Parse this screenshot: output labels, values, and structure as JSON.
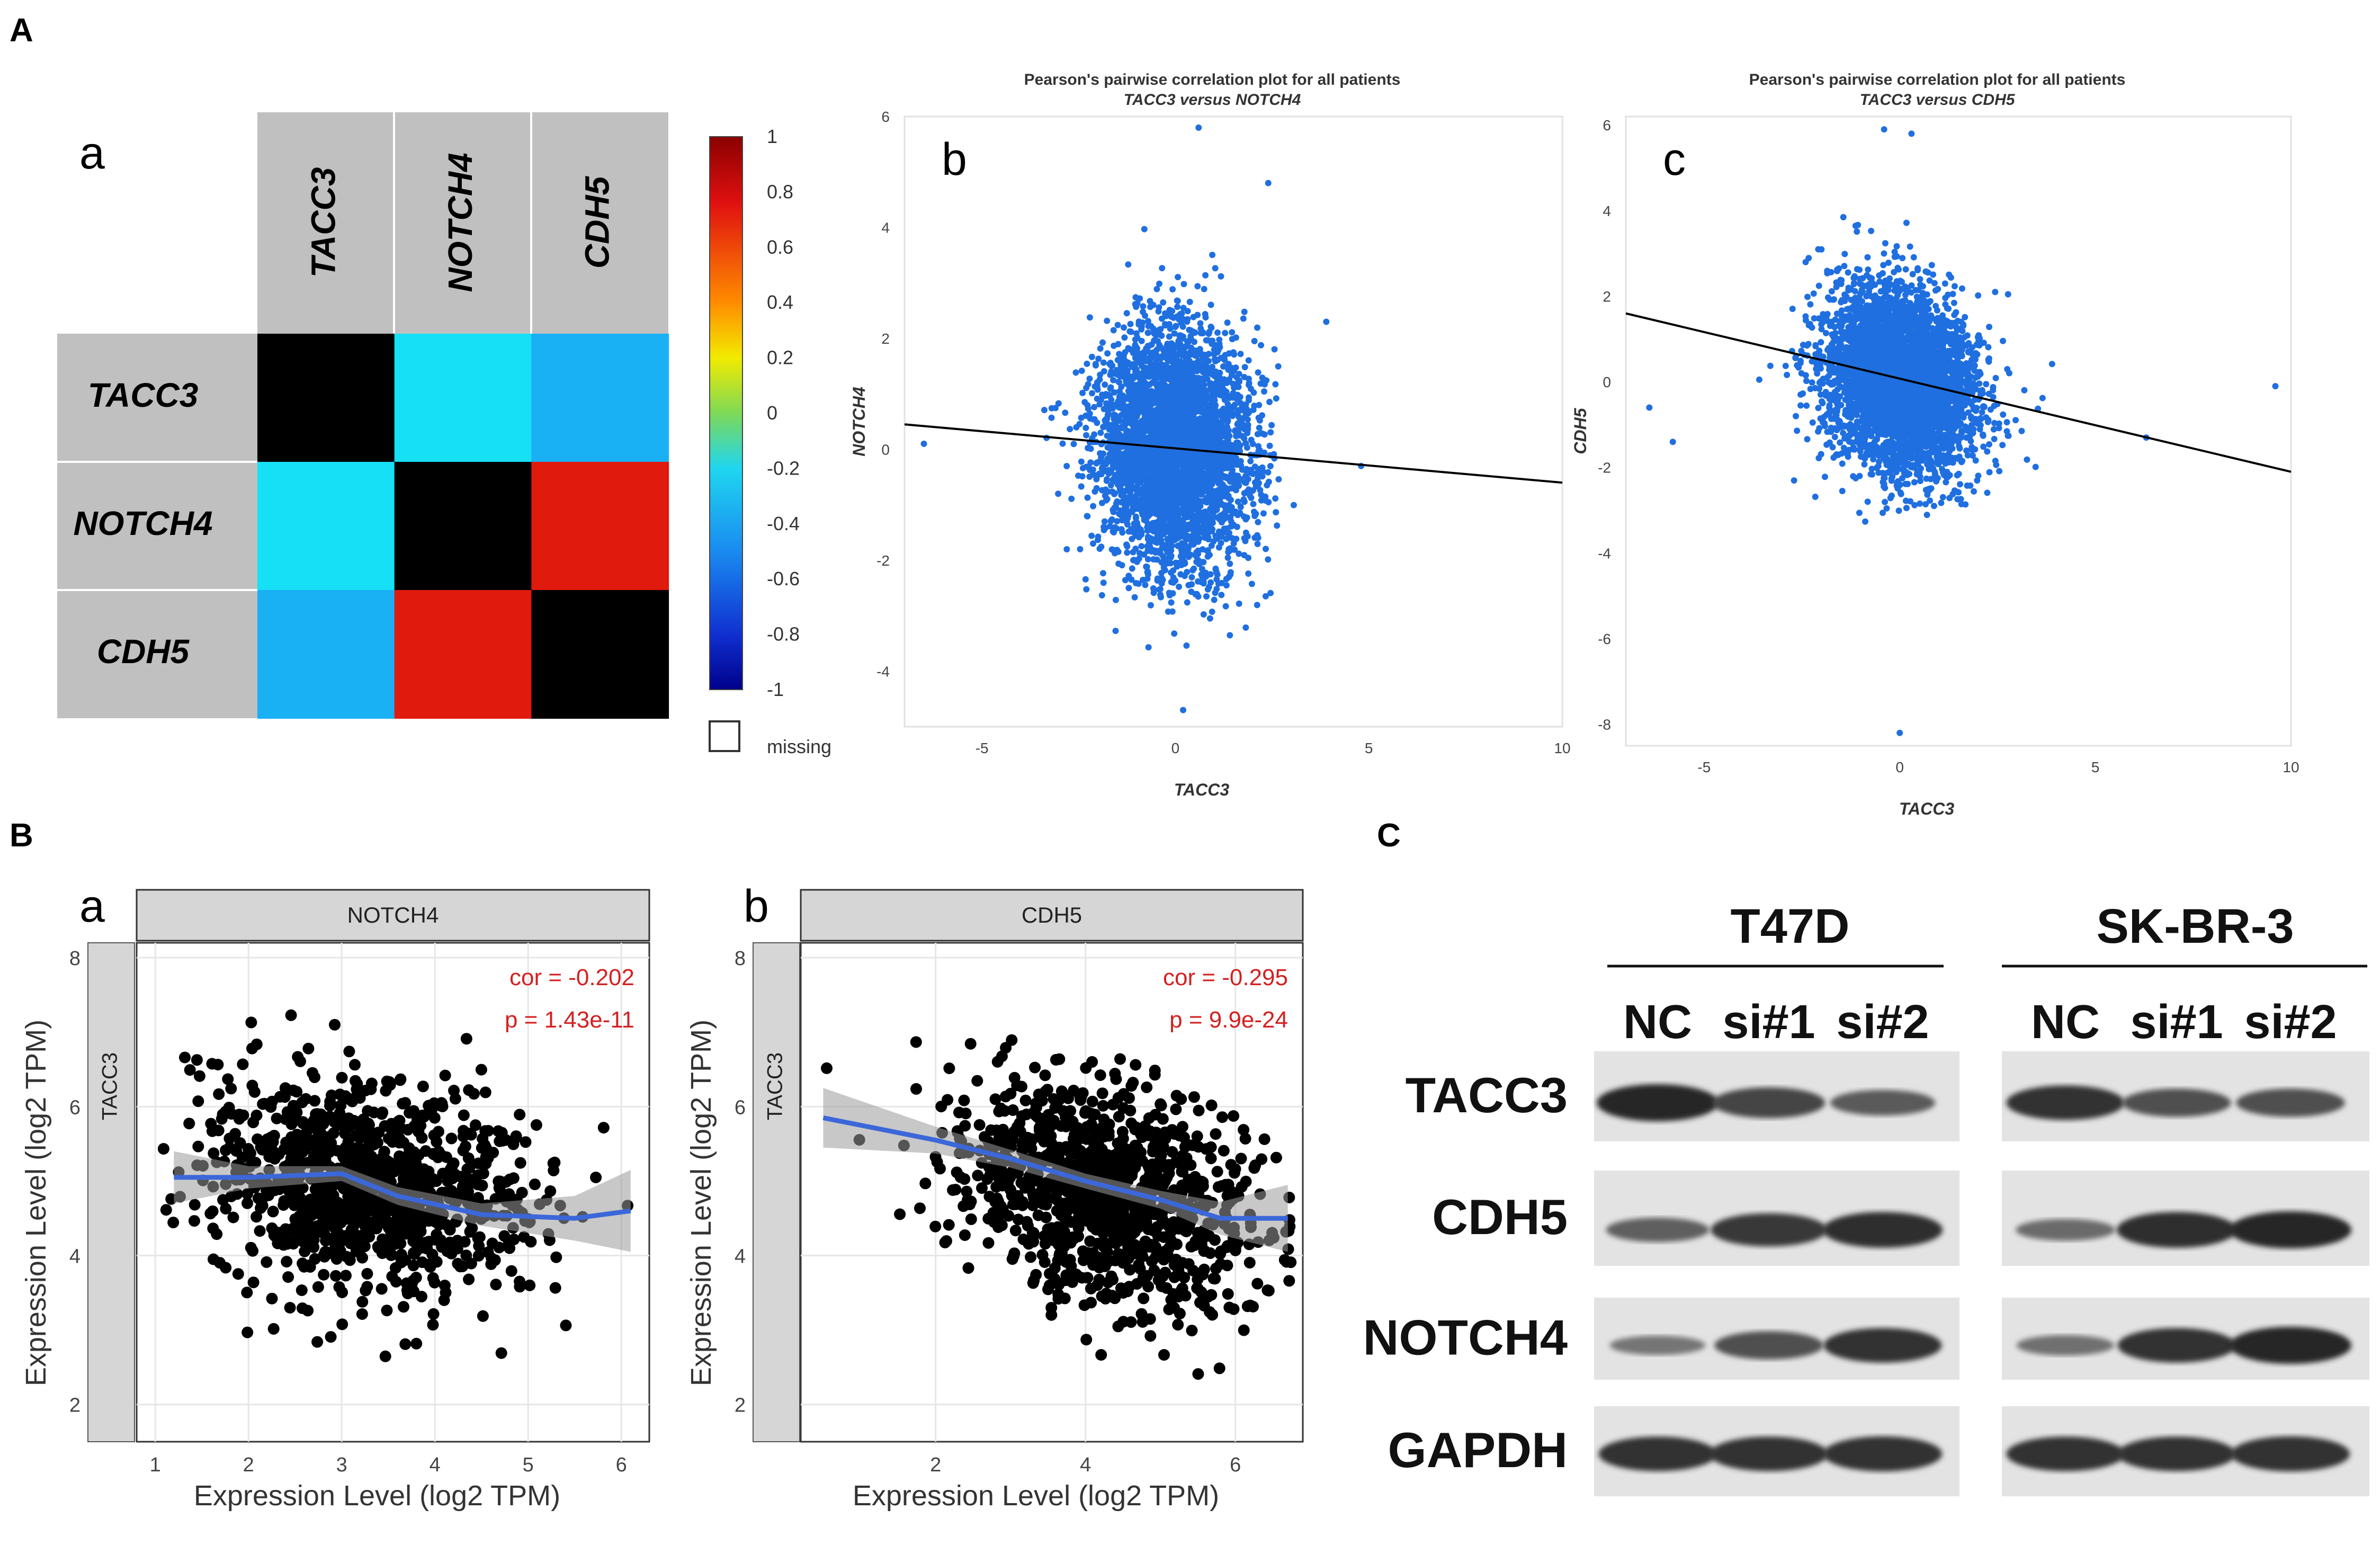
{
  "panel_labels": {
    "A": "A",
    "B": "B",
    "C": "C"
  },
  "heatmap": {
    "sub_label": "a",
    "genes": [
      "TACC3",
      "NOTCH4",
      "CDH5"
    ],
    "matrix": [
      [
        1,
        -0.19,
        -0.29
      ],
      [
        -0.19,
        1,
        0.84
      ],
      [
        -0.29,
        0.84,
        1
      ]
    ],
    "cell_colors": [
      [
        "#000000",
        "#16e0f6",
        "#1ab0f4"
      ],
      [
        "#16e0f6",
        "#000000",
        "#e01a0c"
      ],
      [
        "#1ab0f4",
        "#e01a0c",
        "#000000"
      ]
    ],
    "colorbar_ticks": [
      "1",
      "0.8",
      "0.6",
      "0.4",
      "0.2",
      "0",
      "-0.2",
      "-0.4",
      "-0.6",
      "-0.8",
      "-1"
    ],
    "missing_label": "missing"
  },
  "chart_data": [
    {
      "id": "A-b",
      "type": "scatter",
      "sub_label": "b",
      "title": "Pearson's pairwise correlation plot for all patients",
      "subtitle": "TACC3 versus NOTCH4",
      "xlabel": "TACC3",
      "ylabel": "NOTCH4",
      "xlim": [
        -7,
        10
      ],
      "ylim": [
        -5,
        6
      ],
      "xticks": [
        -5,
        0,
        5,
        10
      ],
      "yticks": [
        -4,
        -2,
        0,
        2,
        4,
        6
      ],
      "fit_line": {
        "x": [
          -7,
          10
        ],
        "y": [
          0.45,
          -0.6
        ]
      },
      "color": "#1f6fe0"
    },
    {
      "id": "A-c",
      "type": "scatter",
      "sub_label": "c",
      "title": "Pearson's pairwise correlation plot for all patients",
      "subtitle": "TACC3 versus CDH5",
      "xlabel": "TACC3",
      "ylabel": "CDH5",
      "xlim": [
        -7,
        10
      ],
      "ylim": [
        -8.5,
        6.2
      ],
      "xticks": [
        -5,
        0,
        5,
        10
      ],
      "yticks": [
        -8,
        -6,
        -4,
        -2,
        0,
        2,
        4,
        6
      ],
      "fit_line": {
        "x": [
          -7,
          10
        ],
        "y": [
          1.6,
          -2.1
        ]
      },
      "color": "#1f6fe0"
    },
    {
      "id": "B-a",
      "type": "scatter",
      "sub_label": "a",
      "facet": "NOTCH4",
      "strip": "TACC3",
      "xlabel": "Expression Level (log2 TPM)",
      "ylabel": "Expression Level (log2 TPM)",
      "xlim": [
        0.8,
        6.3
      ],
      "ylim": [
        1.5,
        8.2
      ],
      "xticks": [
        1,
        2,
        3,
        4,
        5,
        6
      ],
      "yticks": [
        2,
        4,
        6,
        8
      ],
      "cor_text": "cor = -0.202",
      "p_text": "p = 1.43e-11",
      "smooth": {
        "x": [
          1.2,
          2,
          3,
          3.6,
          4.5,
          5.5,
          6.1
        ],
        "y": [
          5.05,
          5.05,
          5.1,
          4.8,
          4.55,
          4.5,
          4.6
        ]
      }
    },
    {
      "id": "B-b",
      "type": "scatter",
      "sub_label": "b",
      "facet": "CDH5",
      "strip": "TACC3",
      "xlabel": "Expression Level (log2 TPM)",
      "ylabel": "Expression Level (log2 TPM)",
      "xlim": [
        0.2,
        6.9
      ],
      "ylim": [
        1.5,
        8.2
      ],
      "xticks": [
        2,
        4,
        6
      ],
      "yticks": [
        2,
        4,
        6,
        8
      ],
      "cor_text": "cor = -0.295",
      "p_text": "p = 9.9e-24",
      "smooth": {
        "x": [
          0.5,
          2,
          3,
          4,
          5,
          5.8,
          6.7
        ],
        "y": [
          5.85,
          5.55,
          5.3,
          5.0,
          4.75,
          4.5,
          4.5
        ]
      }
    }
  ],
  "western": {
    "cell_lines": [
      "T47D",
      "SK-BR-3"
    ],
    "lanes": [
      "NC",
      "si#1",
      "si#2"
    ],
    "proteins": [
      "TACC3",
      "CDH5",
      "NOTCH4",
      "GAPDH"
    ],
    "band_intensity": {
      "T47D": {
        "TACC3": [
          1.0,
          0.75,
          0.55
        ],
        "CDH5": [
          0.5,
          0.85,
          0.95
        ],
        "NOTCH4": [
          0.3,
          0.65,
          0.9
        ],
        "GAPDH": [
          0.9,
          0.9,
          0.92
        ]
      },
      "SK-BR-3": {
        "TACC3": [
          0.9,
          0.65,
          0.65
        ],
        "CDH5": [
          0.4,
          0.95,
          1.0
        ],
        "NOTCH4": [
          0.35,
          0.9,
          1.0
        ],
        "GAPDH": [
          0.9,
          0.9,
          0.92
        ]
      }
    }
  }
}
